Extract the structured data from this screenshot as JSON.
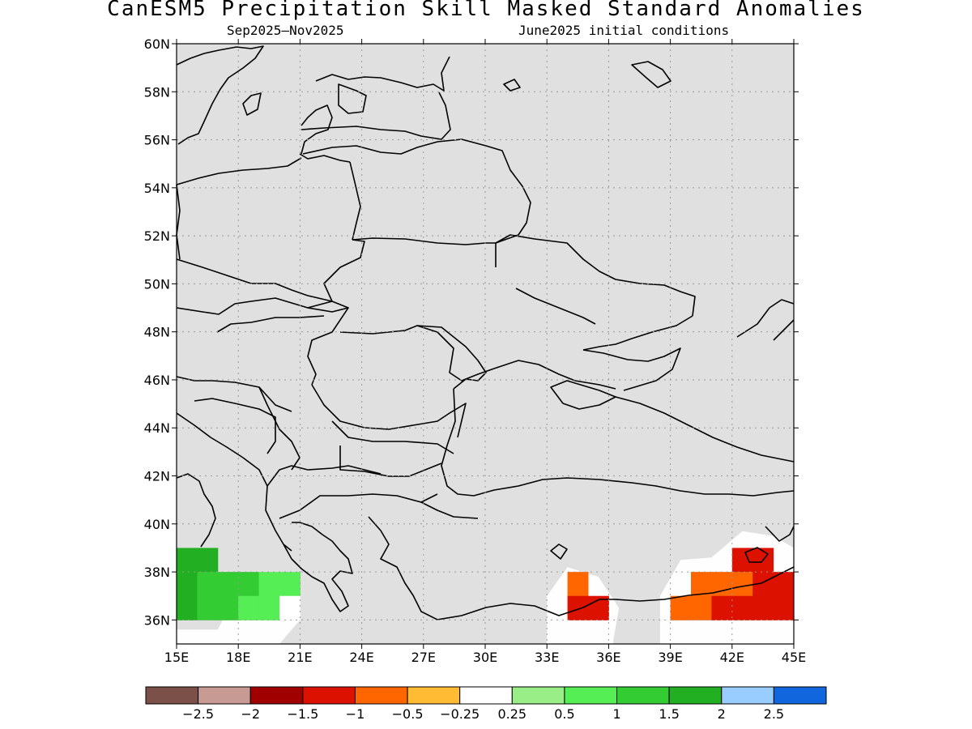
{
  "title": "CanESM5 Precipitation Skill Masked Standard Anomalies",
  "subtitle_left": "Sep2025–Nov2025",
  "subtitle_right": "June2025 initial conditions",
  "map": {
    "lon_range": [
      15,
      45
    ],
    "lat_range": [
      35,
      60
    ],
    "land_color": "#e0e0e0",
    "grid": true,
    "lat_labels": [
      "60N",
      "58N",
      "56N",
      "54N",
      "52N",
      "50N",
      "48N",
      "46N",
      "44N",
      "42N",
      "40N",
      "38N",
      "36N"
    ],
    "lon_labels": [
      "15E",
      "18E",
      "21E",
      "24E",
      "27E",
      "30E",
      "33E",
      "36E",
      "39E",
      "42E",
      "45E"
    ],
    "anomaly_cells": [
      {
        "lon": 15,
        "lat": 38,
        "color": "#22b022"
      },
      {
        "lon": 16,
        "lat": 38,
        "color": "#22b022"
      },
      {
        "lon": 15,
        "lat": 37,
        "color": "#22b022"
      },
      {
        "lon": 16,
        "lat": 37,
        "color": "#33cc33"
      },
      {
        "lon": 17,
        "lat": 37,
        "color": "#33cc33"
      },
      {
        "lon": 18,
        "lat": 37,
        "color": "#33cc33"
      },
      {
        "lon": 19,
        "lat": 37,
        "color": "#55ee55"
      },
      {
        "lon": 20,
        "lat": 37,
        "color": "#55ee55"
      },
      {
        "lon": 15,
        "lat": 36,
        "color": "#22b022"
      },
      {
        "lon": 16,
        "lat": 36,
        "color": "#33cc33"
      },
      {
        "lon": 17,
        "lat": 36,
        "color": "#33cc33"
      },
      {
        "lon": 18,
        "lat": 36,
        "color": "#55ee55"
      },
      {
        "lon": 19,
        "lat": 36,
        "color": "#55ee55"
      },
      {
        "lon": 20,
        "lat": 36,
        "color": "#ffffff"
      },
      {
        "lon": 34,
        "lat": 37,
        "color": "#ff6600"
      },
      {
        "lon": 34,
        "lat": 36,
        "color": "#dd1100"
      },
      {
        "lon": 35,
        "lat": 36,
        "color": "#dd1100"
      },
      {
        "lon": 40,
        "lat": 37,
        "color": "#ff6600"
      },
      {
        "lon": 41,
        "lat": 37,
        "color": "#ff6600"
      },
      {
        "lon": 42,
        "lat": 38,
        "color": "#dd1100"
      },
      {
        "lon": 43,
        "lat": 38,
        "color": "#dd1100"
      },
      {
        "lon": 42,
        "lat": 37,
        "color": "#ff6600"
      },
      {
        "lon": 43,
        "lat": 37,
        "color": "#dd1100"
      },
      {
        "lon": 44,
        "lat": 37,
        "color": "#dd1100"
      },
      {
        "lon": 39,
        "lat": 36,
        "color": "#ff6600"
      },
      {
        "lon": 40,
        "lat": 36,
        "color": "#ff6600"
      },
      {
        "lon": 41,
        "lat": 36,
        "color": "#dd1100"
      },
      {
        "lon": 42,
        "lat": 36,
        "color": "#dd1100"
      },
      {
        "lon": 43,
        "lat": 36,
        "color": "#dd1100"
      },
      {
        "lon": 44,
        "lat": 36,
        "color": "#dd1100"
      }
    ]
  },
  "colorbar": {
    "colors": [
      "#7a5048",
      "#c89a94",
      "#a00000",
      "#dd1100",
      "#ff6600",
      "#ffbb33",
      "#ffffff",
      "#99ee88",
      "#55ee55",
      "#33cc33",
      "#22b022",
      "#99ccff",
      "#1166dd"
    ],
    "labels": [
      "−2.5",
      "−2",
      "−1.5",
      "−1",
      "−0.5",
      "−0.25",
      "0.25",
      "0.5",
      "1",
      "1.5",
      "2",
      "2.5"
    ]
  }
}
